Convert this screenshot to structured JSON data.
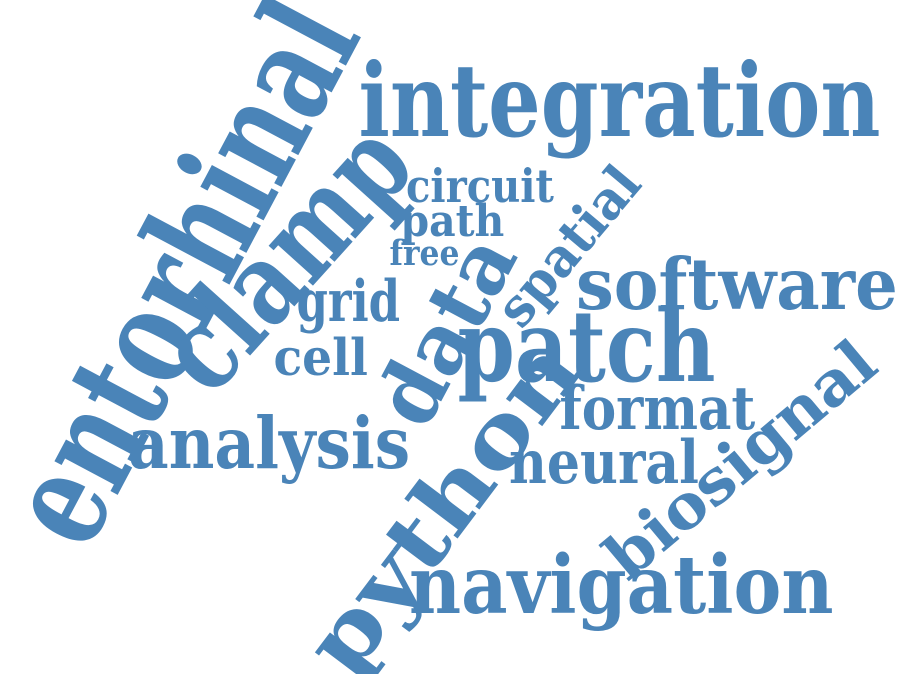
{
  "cloud": {
    "color": "#4a84b8",
    "words": [
      {
        "id": "entorhinal",
        "text": "entorhinal"
      },
      {
        "id": "integration",
        "text": "integration"
      },
      {
        "id": "clamp",
        "text": "clamp"
      },
      {
        "id": "circuit",
        "text": "circuit"
      },
      {
        "id": "path",
        "text": "path"
      },
      {
        "id": "free",
        "text": "free"
      },
      {
        "id": "spatial",
        "text": "spatial"
      },
      {
        "id": "software",
        "text": "software"
      },
      {
        "id": "grid",
        "text": "grid"
      },
      {
        "id": "data",
        "text": "data"
      },
      {
        "id": "patch",
        "text": "patch"
      },
      {
        "id": "cell",
        "text": "cell"
      },
      {
        "id": "format",
        "text": "format"
      },
      {
        "id": "analysis",
        "text": "analysis"
      },
      {
        "id": "python",
        "text": "python"
      },
      {
        "id": "neural",
        "text": "neural"
      },
      {
        "id": "biosignal",
        "text": "biosignal"
      },
      {
        "id": "navigation",
        "text": "navigation"
      }
    ]
  }
}
